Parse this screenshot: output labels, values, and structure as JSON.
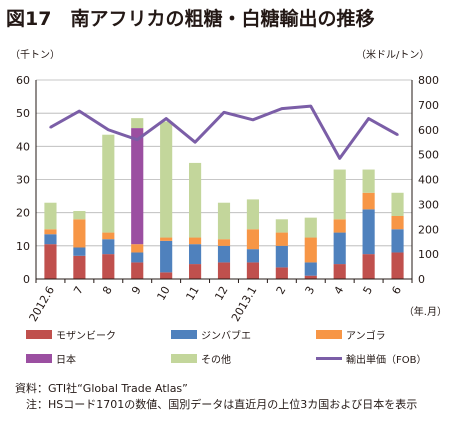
{
  "title": "図17　南アフリカの粗糖・白糖輸出の推移",
  "chart_data": {
    "type": "bar",
    "stacked": true,
    "categories": [
      "2012.6",
      "7",
      "8",
      "9",
      "10",
      "11",
      "12",
      "2013.1",
      "2",
      "3",
      "4",
      "5",
      "6"
    ],
    "x_unit_label": "（年.月）",
    "y_left": {
      "unit": "（千トン）",
      "ylim": [
        0,
        60
      ],
      "ticks": [
        0,
        10,
        20,
        30,
        40,
        50,
        60
      ]
    },
    "y_right": {
      "unit": "（米ドル/トン）",
      "ylim": [
        0,
        800
      ],
      "ticks": [
        0,
        100,
        200,
        300,
        400,
        500,
        600,
        700,
        800
      ]
    },
    "grid": true,
    "series": [
      {
        "name": "モザンビーク",
        "color": "#c0504d",
        "values": [
          10.5,
          7,
          7.5,
          5,
          2,
          4.5,
          5,
          5,
          3.5,
          1,
          4.5,
          7.5,
          8
        ]
      },
      {
        "name": "ジンバブエ",
        "color": "#4f81bd",
        "values": [
          3,
          2.5,
          4.5,
          3,
          9.5,
          6,
          5,
          4,
          6.5,
          4,
          9.5,
          13.5,
          7
        ]
      },
      {
        "name": "アンゴラ",
        "color": "#f79646",
        "values": [
          1.5,
          8.5,
          2,
          2.5,
          1,
          2,
          2,
          6,
          4,
          7.5,
          4,
          5,
          4
        ]
      },
      {
        "name": "日本",
        "color": "#9b4fa1",
        "values": [
          0,
          0,
          0,
          35,
          0,
          0,
          0,
          0,
          0,
          0,
          0,
          0,
          0
        ]
      },
      {
        "name": "その他",
        "color": "#c3d69b",
        "values": [
          8,
          2.5,
          29.5,
          3,
          35,
          22.5,
          11,
          9,
          4,
          6,
          15,
          7,
          7
        ]
      }
    ],
    "line": {
      "name": "輸出単価（FOB）",
      "color": "#7b5ea7",
      "axis": "right",
      "values": [
        610,
        675,
        600,
        560,
        645,
        550,
        670,
        640,
        685,
        695,
        485,
        645,
        580
      ]
    }
  },
  "notes": [
    {
      "label": "資料：",
      "text": "GTI社“Global Trade Atlas”"
    },
    {
      "label": "注：",
      "text": "HSコード1701の数値、国別データは直近月の上位3カ国および日本を表示"
    }
  ]
}
